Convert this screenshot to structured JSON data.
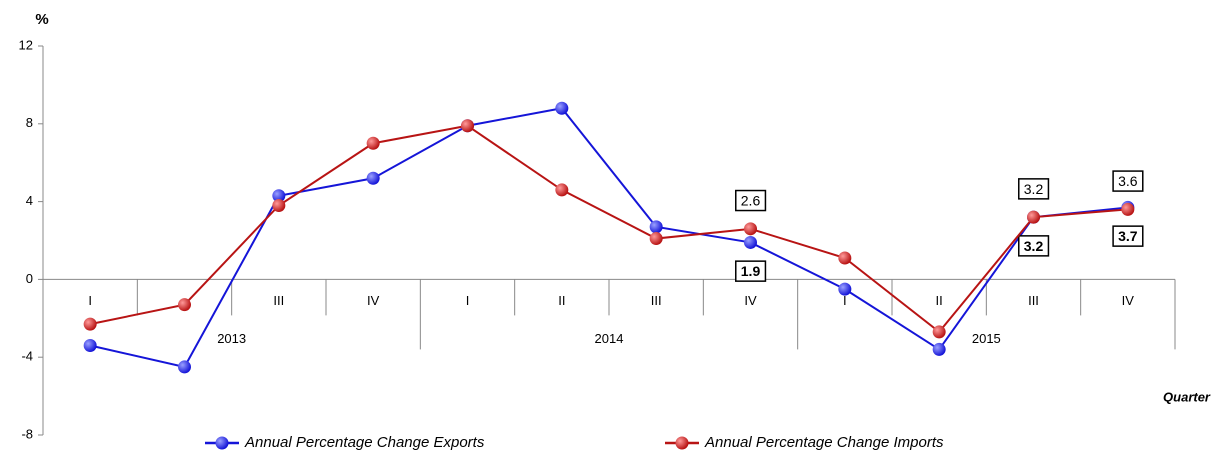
{
  "chart_data": {
    "type": "line",
    "y_label": "%",
    "x_label": "Quarter",
    "categories": [
      "I",
      null,
      "III",
      "IV",
      "I",
      "II",
      "III",
      "IV",
      "I",
      "II",
      "III",
      "IV"
    ],
    "years": [
      "2013",
      "2014",
      "2015"
    ],
    "series": [
      {
        "name": "Annual Percentage Change Exports",
        "color": "#1515d8",
        "values": [
          -3.4,
          -4.5,
          4.3,
          5.2,
          7.9,
          8.8,
          2.7,
          1.9,
          -0.5,
          -3.6,
          3.2,
          3.7
        ],
        "value_labels": [
          null,
          null,
          null,
          null,
          null,
          null,
          null,
          "1.9",
          null,
          null,
          "3.2",
          "3.7"
        ]
      },
      {
        "name": "Annual Percentage Change Imports",
        "color": "#b81414",
        "values": [
          -2.3,
          -1.3,
          3.8,
          7.0,
          7.9,
          4.6,
          2.1,
          2.6,
          1.1,
          -2.7,
          3.2,
          3.6
        ],
        "value_labels": [
          null,
          null,
          null,
          null,
          null,
          null,
          null,
          "2.6",
          null,
          null,
          "3.2",
          "3.6"
        ]
      }
    ],
    "ylim": [
      -8,
      12
    ],
    "yticks": [
      -8,
      -4,
      0,
      4,
      8,
      12
    ],
    "grid": false
  }
}
